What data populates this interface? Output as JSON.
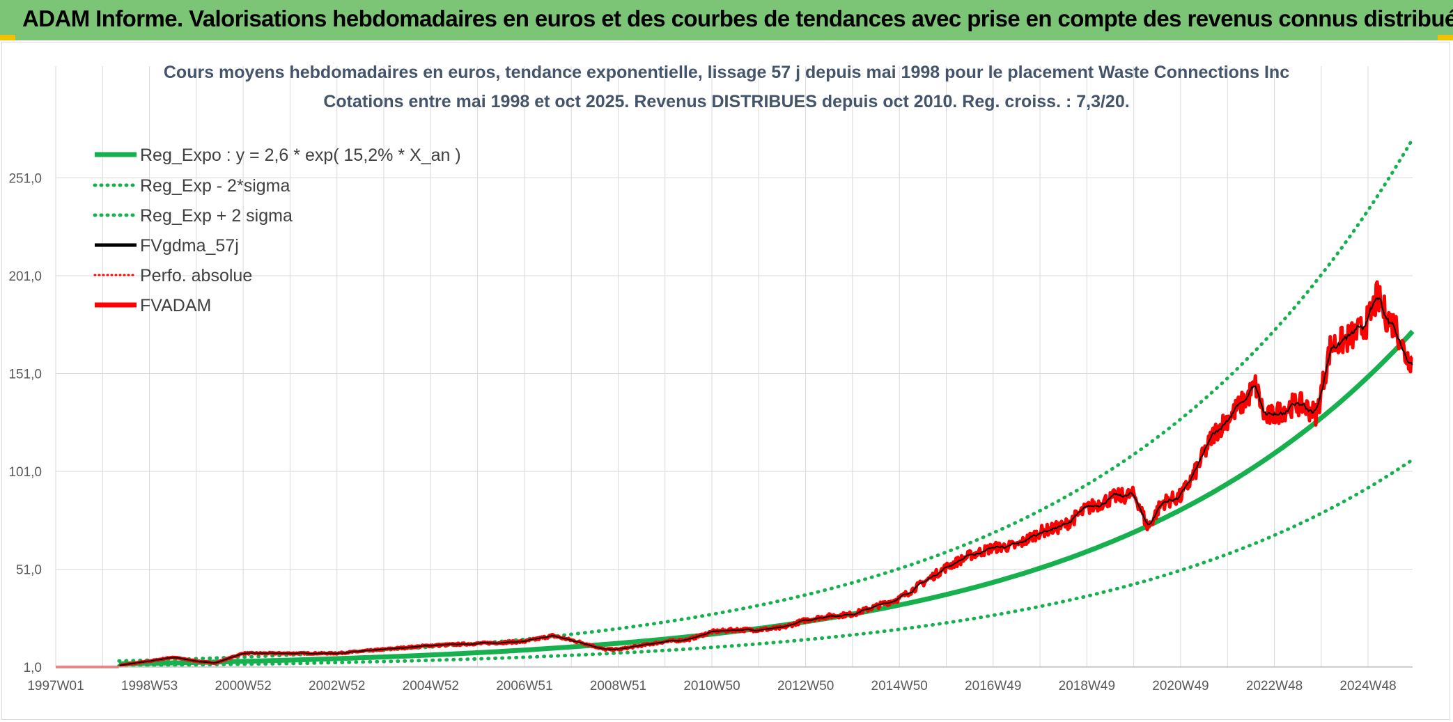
{
  "header": {
    "title": "ADAM Informe. Valorisations hebdomadaires en euros et des courbes de tendances avec prise en compte des revenus connus distribués"
  },
  "colors": {
    "banner": "#7cc576",
    "reg_green": "#17b04f",
    "fv_black": "#000000",
    "fvadam_red": "#ff0000",
    "title": "#44546a",
    "grid": "#d9d9d9"
  },
  "chart_data": {
    "type": "line",
    "title": "Cours moyens hebdomadaires en euros, tendance exponentielle, lissage 57 j depuis mai 1998 pour le placement Waste Connections Inc",
    "subtitle": "Cotations entre mai 1998 et oct 2025. Revenus DISTRIBUES depuis oct 2010. Reg. croiss. : 7,3/20.",
    "xlabel": "",
    "ylabel": "",
    "ylim": [
      1,
      301
    ],
    "xlim": [
      1997.0,
      2025.95
    ],
    "grid": true,
    "legend_position": "top-left",
    "y_ticks": [
      "1,0",
      "51,0",
      "101,0",
      "151,0",
      "201,0",
      "251,0"
    ],
    "y_tick_values": [
      1,
      51,
      101,
      151,
      201,
      251
    ],
    "x_ticks": [
      "1997W01",
      "1998W53",
      "2000W52",
      "2002W52",
      "2004W52",
      "2006W51",
      "2008W51",
      "2010W50",
      "2012W50",
      "2014W50",
      "2016W49",
      "2018W49",
      "2020W49",
      "2022W48",
      "2024W48"
    ],
    "x_tick_values": [
      1997.0,
      1999.0,
      2001.0,
      2003.0,
      2005.0,
      2007.0,
      2009.0,
      2011.0,
      2013.0,
      2015.0,
      2017.0,
      2019.0,
      2021.0,
      2023.0,
      2025.0
    ],
    "regression": {
      "a": 2.6,
      "rate": 0.152,
      "t0": 1998.35,
      "minus_factor": 0.62,
      "plus_factor": 1.57
    },
    "series": [
      {
        "name": "Reg_Expo : y = 2,6 * exp( 15,2% *  X_an )",
        "style": "solid-thick",
        "color": "#17b04f",
        "kind": "reg"
      },
      {
        "name": "Reg_Exp - 2*sigma",
        "style": "dotted",
        "color": "#17b04f",
        "kind": "reg_minus"
      },
      {
        "name": "Reg_Exp + 2 sigma",
        "style": "dotted",
        "color": "#17b04f",
        "kind": "reg_plus"
      },
      {
        "name": "FVgdma_57j",
        "style": "solid",
        "color": "#000000",
        "kind": "smooth"
      },
      {
        "name": "Perfo. absolue",
        "style": "dotted-thin",
        "color": "#ff0000",
        "kind": "perfo"
      },
      {
        "name": "FVADAM",
        "style": "solid-thick",
        "color": "#ff0000",
        "kind": "price"
      }
    ],
    "price": {
      "x": [
        1997.0,
        1998.35,
        1998.4,
        1999.0,
        1999.5,
        2000.0,
        2000.4,
        2001.0,
        2001.6,
        2002.0,
        2003.0,
        2004.0,
        2005.0,
        2006.0,
        2007.0,
        2007.6,
        2008.3,
        2008.7,
        2009.0,
        2009.5,
        2010.0,
        2010.5,
        2011.0,
        2011.5,
        2012.0,
        2012.5,
        2013.0,
        2013.5,
        2014.0,
        2014.5,
        2015.0,
        2015.5,
        2016.0,
        2016.5,
        2017.0,
        2017.5,
        2018.0,
        2018.5,
        2019.0,
        2019.3,
        2019.6,
        2020.0,
        2020.1,
        2020.3,
        2020.6,
        2021.0,
        2021.3,
        2021.7,
        2022.0,
        2022.4,
        2022.6,
        2022.8,
        2023.0,
        2023.4,
        2023.6,
        2023.9,
        2024.2,
        2024.5,
        2024.8,
        2025.0,
        2025.2,
        2025.4,
        2025.6,
        2025.8,
        2025.95
      ],
      "y": [
        1,
        1,
        2,
        4,
        6,
        4,
        3,
        8,
        8,
        8,
        8,
        10,
        12,
        13,
        14,
        17,
        13,
        10,
        10,
        12,
        14,
        15,
        19,
        20,
        20,
        21,
        25,
        27,
        28,
        32,
        36,
        44,
        52,
        58,
        62,
        63,
        70,
        73,
        82,
        85,
        88,
        89,
        85,
        72,
        85,
        88,
        100,
        120,
        128,
        138,
        145,
        128,
        130,
        135,
        135,
        130,
        165,
        168,
        172,
        178,
        190,
        180,
        175,
        160,
        158
      ]
    }
  },
  "legend": [
    {
      "label": "Reg_Expo : y = 2,6 * exp( 15,2% *  X_an )"
    },
    {
      "label": "Reg_Exp - 2*sigma"
    },
    {
      "label": "Reg_Exp + 2 sigma"
    },
    {
      "label": "FVgdma_57j"
    },
    {
      "label": "Perfo. absolue"
    },
    {
      "label": "FVADAM"
    }
  ]
}
